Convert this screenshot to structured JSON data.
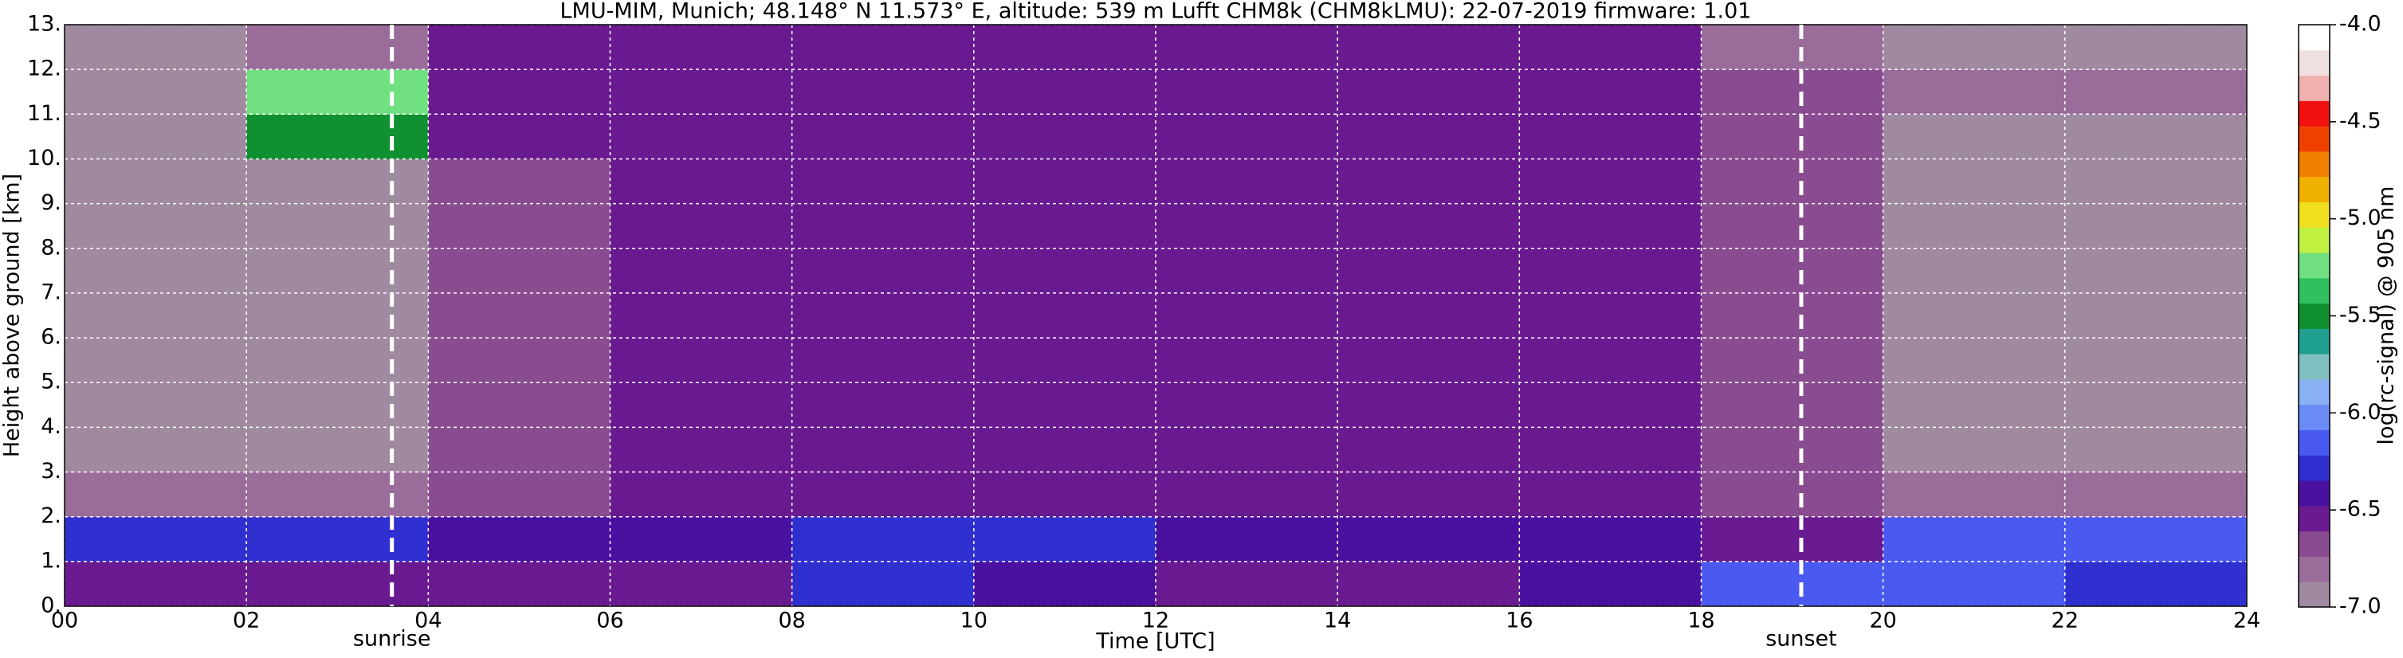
{
  "chart_data": {
    "type": "heatmap",
    "title": "LMU-MIM, Munich; 48.148° N 11.573° E, altitude: 539 m    Lufft CHM8k (CHM8kLMU): 22-07-2019    firmware: 1.01",
    "x_label": "Time [UTC]",
    "y_label": "Height above ground [km]",
    "colorbar_label": "log(rc-signal) @ 905 nm",
    "xbins": [
      0,
      2,
      4,
      6,
      8,
      10,
      12,
      14,
      16,
      18,
      20,
      22,
      24
    ],
    "ybins": [
      0,
      1,
      2,
      3,
      4,
      5,
      6,
      7,
      8,
      9,
      10,
      11,
      12,
      13
    ],
    "z": [
      [
        -6.6,
        -6.6,
        -6.6,
        -6.6,
        -6.3,
        -6.4,
        -6.5,
        -6.5,
        -6.4,
        -6.2,
        -6.1,
        -6.3
      ],
      [
        -6.3,
        -6.3,
        -6.4,
        -6.4,
        -6.3,
        -6.3,
        -6.4,
        -6.4,
        -6.4,
        -6.5,
        -6.2,
        -6.1
      ],
      [
        -6.8,
        -6.8,
        -6.7,
        -6.6,
        -6.6,
        -6.6,
        -6.6,
        -6.6,
        -6.6,
        -6.7,
        -6.8,
        -6.8
      ],
      [
        -6.9,
        -6.9,
        -6.7,
        -6.6,
        -6.6,
        -6.6,
        -6.6,
        -6.6,
        -6.6,
        -6.7,
        -6.9,
        -6.9
      ],
      [
        -6.9,
        -6.9,
        -6.7,
        -6.6,
        -6.6,
        -6.6,
        -6.6,
        -6.6,
        -6.6,
        -6.7,
        -6.9,
        -6.9
      ],
      [
        -6.9,
        -6.9,
        -6.7,
        -6.6,
        -6.6,
        -6.6,
        -6.6,
        -6.6,
        -6.6,
        -6.7,
        -6.9,
        -6.9
      ],
      [
        -6.9,
        -6.9,
        -6.7,
        -6.6,
        -6.6,
        -6.6,
        -6.6,
        -6.6,
        -6.6,
        -6.7,
        -6.9,
        -6.9
      ],
      [
        -6.9,
        -6.9,
        -6.7,
        -6.6,
        -6.6,
        -6.6,
        -6.6,
        -6.6,
        -6.6,
        -6.7,
        -6.9,
        -6.9
      ],
      [
        -6.9,
        -6.9,
        -6.7,
        -6.6,
        -6.6,
        -6.6,
        -6.6,
        -6.6,
        -6.6,
        -6.7,
        -6.9,
        -6.9
      ],
      [
        -6.9,
        -6.9,
        -6.7,
        -6.6,
        -6.6,
        -6.6,
        -6.6,
        -6.6,
        -6.6,
        -6.7,
        -6.9,
        -6.9
      ],
      [
        -6.9,
        -5.5,
        -6.6,
        -6.6,
        -6.6,
        -6.6,
        -6.6,
        -6.6,
        -6.6,
        -6.7,
        -6.9,
        -6.9
      ],
      [
        -6.9,
        -5.3,
        -6.6,
        -6.6,
        -6.6,
        -6.6,
        -6.6,
        -6.6,
        -6.5,
        -6.7,
        -6.8,
        -6.8
      ],
      [
        -6.9,
        -6.8,
        -6.6,
        -6.6,
        -6.6,
        -6.6,
        -6.6,
        -6.6,
        -6.6,
        -6.8,
        -6.9,
        -6.9
      ]
    ],
    "xlim": [
      0,
      24
    ],
    "ylim": [
      0,
      13
    ],
    "xticks": [
      {
        "value": 0,
        "label": "00"
      },
      {
        "value": 2,
        "label": "02"
      },
      {
        "value": 4,
        "label": "04"
      },
      {
        "value": 6,
        "label": "06"
      },
      {
        "value": 8,
        "label": "08"
      },
      10,
      12,
      14,
      16,
      18,
      20,
      22,
      24
    ],
    "yticks": [
      {
        "value": 0,
        "label": "0."
      },
      {
        "value": 1,
        "label": "1."
      },
      {
        "value": 2,
        "label": "2."
      },
      {
        "value": 3,
        "label": "3."
      },
      {
        "value": 4,
        "label": "4."
      },
      {
        "value": 5,
        "label": "5."
      },
      {
        "value": 6,
        "label": "6."
      },
      {
        "value": 7,
        "label": "7."
      },
      {
        "value": 8,
        "label": "8."
      },
      {
        "value": 9,
        "label": "9."
      },
      {
        "value": 10,
        "label": "10."
      },
      {
        "value": 11,
        "label": "11."
      },
      {
        "value": 12,
        "label": "12."
      },
      {
        "value": 13,
        "label": "13."
      }
    ],
    "clim": [
      -7,
      -4
    ],
    "cticks": [
      {
        "value": -7,
        "label": "-7.0"
      },
      -6.5,
      {
        "value": -6,
        "label": "-6.0"
      },
      -5.5,
      {
        "value": -5,
        "label": "-5.0"
      },
      -4.5,
      {
        "value": -4,
        "label": "-4.0"
      }
    ],
    "colorscale": [
      "#a08aa0",
      "#9a6c9a",
      "#8a4c90",
      "#6a1a90",
      "#4a10a0",
      "#3030d0",
      "#4a5af0",
      "#6a8af5",
      "#8ab0f5",
      "#80c0c0",
      "#20a090",
      "#109030",
      "#30c060",
      "#70e080",
      "#c0f040",
      "#f0e020",
      "#f0b000",
      "#f08000",
      "#f04000",
      "#f01010",
      "#f0b0b0",
      "#f0e0e0",
      "#ffffff"
    ],
    "grid": true,
    "annotations": [
      {
        "label": "sunrise",
        "x": 3.6
      },
      {
        "label": "sunset",
        "x": 19.1
      }
    ]
  }
}
